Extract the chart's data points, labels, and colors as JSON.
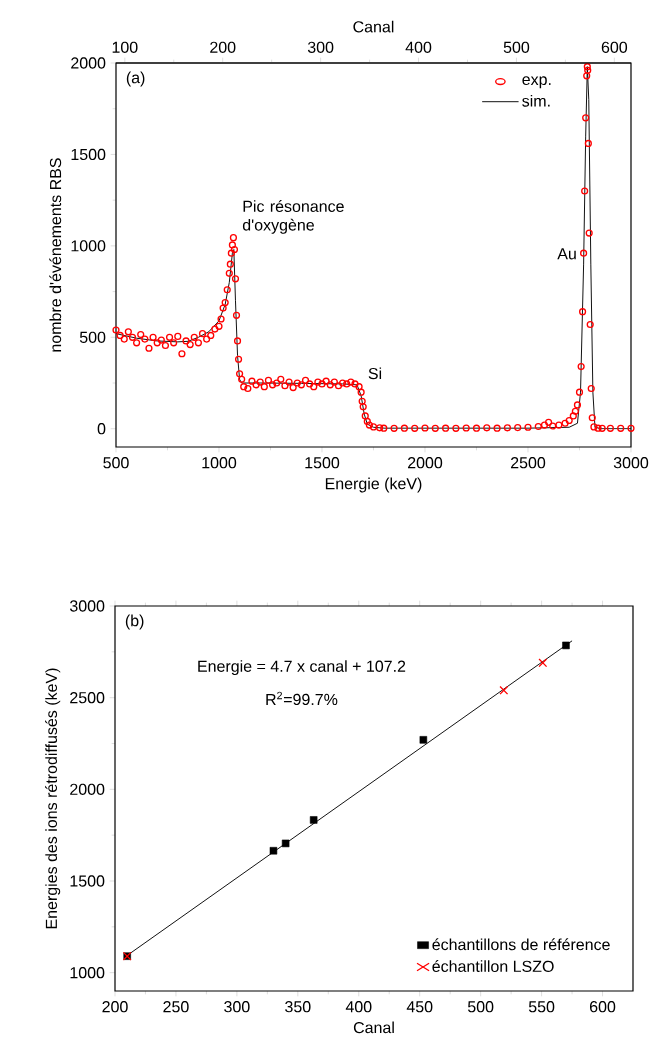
{
  "chart_data": [
    {
      "type": "scatter",
      "xlabel": "Energie (keV)",
      "ylabel": "nombre d'événements RBS",
      "x2label": "Canal",
      "xlim": [
        500,
        3000
      ],
      "xticks": [
        500,
        1000,
        1500,
        2000,
        2500,
        3000
      ],
      "ylim": [
        -100,
        2000
      ],
      "yticks": [
        0,
        500,
        1000,
        1500,
        2000
      ],
      "x2lim": [
        91,
        617
      ],
      "x2ticks": [
        100,
        200,
        300,
        400,
        500,
        600
      ],
      "legend": "top right",
      "annotations": [
        "(a)",
        {
          "text": "Pic résonance d'oxygène",
          "x": 1090,
          "y": 1040
        },
        {
          "text": "Si",
          "x": 1700,
          "y": 245
        },
        {
          "text": "Au",
          "x": 2760,
          "y": 900
        }
      ],
      "series": [
        {
          "name": "exp.",
          "marker": "circle",
          "color": "#ff0000",
          "x": [
            500,
            520,
            540,
            560,
            580,
            600,
            620,
            640,
            660,
            680,
            700,
            720,
            740,
            760,
            780,
            800,
            820,
            840,
            860,
            880,
            900,
            920,
            940,
            960,
            980,
            1000,
            1010,
            1020,
            1030,
            1040,
            1050,
            1055,
            1060,
            1065,
            1070,
            1075,
            1080,
            1085,
            1090,
            1095,
            1100,
            1110,
            1120,
            1140,
            1160,
            1180,
            1200,
            1220,
            1240,
            1260,
            1280,
            1300,
            1320,
            1340,
            1360,
            1380,
            1400,
            1420,
            1440,
            1460,
            1480,
            1500,
            1520,
            1540,
            1560,
            1580,
            1600,
            1620,
            1640,
            1660,
            1680,
            1690,
            1695,
            1700,
            1710,
            1720,
            1730,
            1750,
            1780,
            1800,
            1850,
            1900,
            1950,
            2000,
            2050,
            2100,
            2150,
            2200,
            2250,
            2300,
            2350,
            2400,
            2450,
            2500,
            2550,
            2580,
            2600,
            2620,
            2650,
            2680,
            2700,
            2720,
            2730,
            2740,
            2750,
            2758,
            2765,
            2770,
            2775,
            2780,
            2785,
            2788,
            2790,
            2793,
            2797,
            2802,
            2807,
            2812,
            2820,
            2840,
            2860,
            2900,
            2950,
            3000
          ],
          "values": [
            540,
            510,
            490,
            530,
            500,
            470,
            515,
            490,
            440,
            500,
            470,
            485,
            455,
            500,
            470,
            505,
            410,
            480,
            460,
            500,
            470,
            520,
            490,
            510,
            545,
            560,
            600,
            660,
            690,
            760,
            850,
            900,
            960,
            1005,
            1045,
            980,
            820,
            620,
            480,
            380,
            300,
            270,
            230,
            220,
            260,
            240,
            255,
            230,
            265,
            240,
            250,
            270,
            235,
            255,
            225,
            250,
            240,
            265,
            245,
            230,
            255,
            245,
            260,
            240,
            255,
            235,
            250,
            245,
            255,
            245,
            230,
            200,
            150,
            120,
            70,
            40,
            20,
            10,
            5,
            3,
            2,
            3,
            2,
            4,
            2,
            3,
            2,
            4,
            3,
            5,
            3,
            5,
            6,
            8,
            12,
            20,
            35,
            15,
            20,
            30,
            45,
            70,
            95,
            130,
            200,
            340,
            640,
            960,
            1300,
            1700,
            1930,
            1980,
            1960,
            1560,
            1070,
            570,
            220,
            60,
            10,
            3,
            2,
            2,
            2,
            2
          ]
        },
        {
          "name": "sim.",
          "type": "line",
          "marker": "none",
          "line_style": "solid",
          "color": "#000000",
          "x": [
            500,
            600,
            700,
            800,
            850,
            900,
            950,
            1000,
            1030,
            1050,
            1065,
            1072,
            1080,
            1090,
            1100,
            1110,
            1200,
            1400,
            1600,
            1670,
            1690,
            1705,
            1720,
            1750,
            1800,
            2000,
            2500,
            2700,
            2740,
            2755,
            2770,
            2780,
            2788,
            2795,
            2805,
            2815,
            2825,
            2850,
            3000
          ],
          "values": [
            520,
            495,
            480,
            475,
            478,
            500,
            530,
            590,
            680,
            800,
            960,
            980,
            700,
            400,
            270,
            250,
            250,
            248,
            245,
            240,
            180,
            80,
            25,
            8,
            3,
            3,
            3,
            8,
            30,
            200,
            900,
            1600,
            1980,
            1800,
            900,
            200,
            10,
            0,
            0
          ]
        }
      ]
    },
    {
      "type": "scatter",
      "xlabel": "Canal",
      "ylabel": "Energies des ions rétrodiffusés (keV)",
      "xlim": [
        200,
        625
      ],
      "xticks": [
        200,
        250,
        300,
        350,
        400,
        450,
        500,
        550,
        600
      ],
      "ylim": [
        900,
        3000
      ],
      "yticks": [
        1000,
        1500,
        2000,
        2500,
        3000
      ],
      "legend": "bottom right",
      "annotations": [
        "(b)",
        "Energie = 4.7 x canal + 107.2",
        "R$^{2}$=99.7%"
      ],
      "series": [
        {
          "type": "line",
          "marker": "none",
          "line_style": "solid",
          "color": "#000000",
          "x": [
            210,
            575
          ],
          "values": [
            1094,
            2810
          ]
        },
        {
          "name": "échantillons de référence",
          "marker": "square",
          "color": "#000000",
          "x": [
            210,
            330,
            340,
            363,
            453,
            570
          ],
          "values": [
            1090,
            1665,
            1705,
            1833,
            2270,
            2785
          ]
        },
        {
          "name": "échantillon LSZO",
          "marker": "cross",
          "color": "#ff0000",
          "x": [
            210,
            519,
            551
          ],
          "values": [
            1090,
            2540,
            2690
          ]
        }
      ]
    }
  ]
}
